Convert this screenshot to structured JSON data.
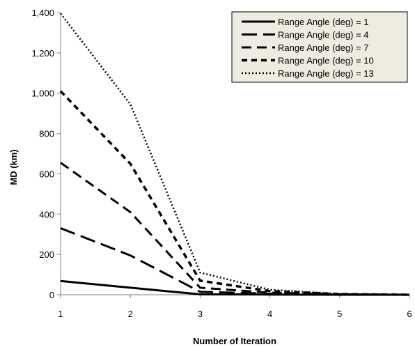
{
  "chart_data": {
    "type": "line",
    "title": "",
    "xlabel": "Number of Iteration",
    "ylabel": "MD (km)",
    "x": [
      1,
      2,
      3,
      4,
      5,
      6
    ],
    "xlim": [
      1,
      6
    ],
    "ylim": [
      0,
      1400
    ],
    "y_ticks": [
      "0",
      "200",
      "400",
      "600",
      "800",
      "1,000",
      "1,200",
      "1,400"
    ],
    "x_ticks": [
      "1",
      "2",
      "3",
      "4",
      "5",
      "6"
    ],
    "grid": false,
    "legend_position": "top-right",
    "series": [
      {
        "name": "Range Angle (deg) = 1",
        "values": [
          68,
          35,
          2,
          1,
          0,
          0
        ],
        "style": "solid"
      },
      {
        "name": "Range Angle (deg) = 4",
        "values": [
          330,
          195,
          15,
          5,
          1,
          0
        ],
        "style": "long-dash"
      },
      {
        "name": "Range Angle (deg) = 7",
        "values": [
          655,
          410,
          35,
          10,
          2,
          0
        ],
        "style": "dash"
      },
      {
        "name": "Range Angle (deg) = 10",
        "values": [
          1010,
          650,
          70,
          18,
          3,
          0
        ],
        "style": "short-dash"
      },
      {
        "name": "Range Angle (deg) = 13",
        "values": [
          1395,
          945,
          110,
          25,
          4,
          0
        ],
        "style": "dotted"
      }
    ],
    "colors": {
      "line": "#000000",
      "legend_fill": "#eeece1",
      "background": "#ffffff"
    }
  }
}
